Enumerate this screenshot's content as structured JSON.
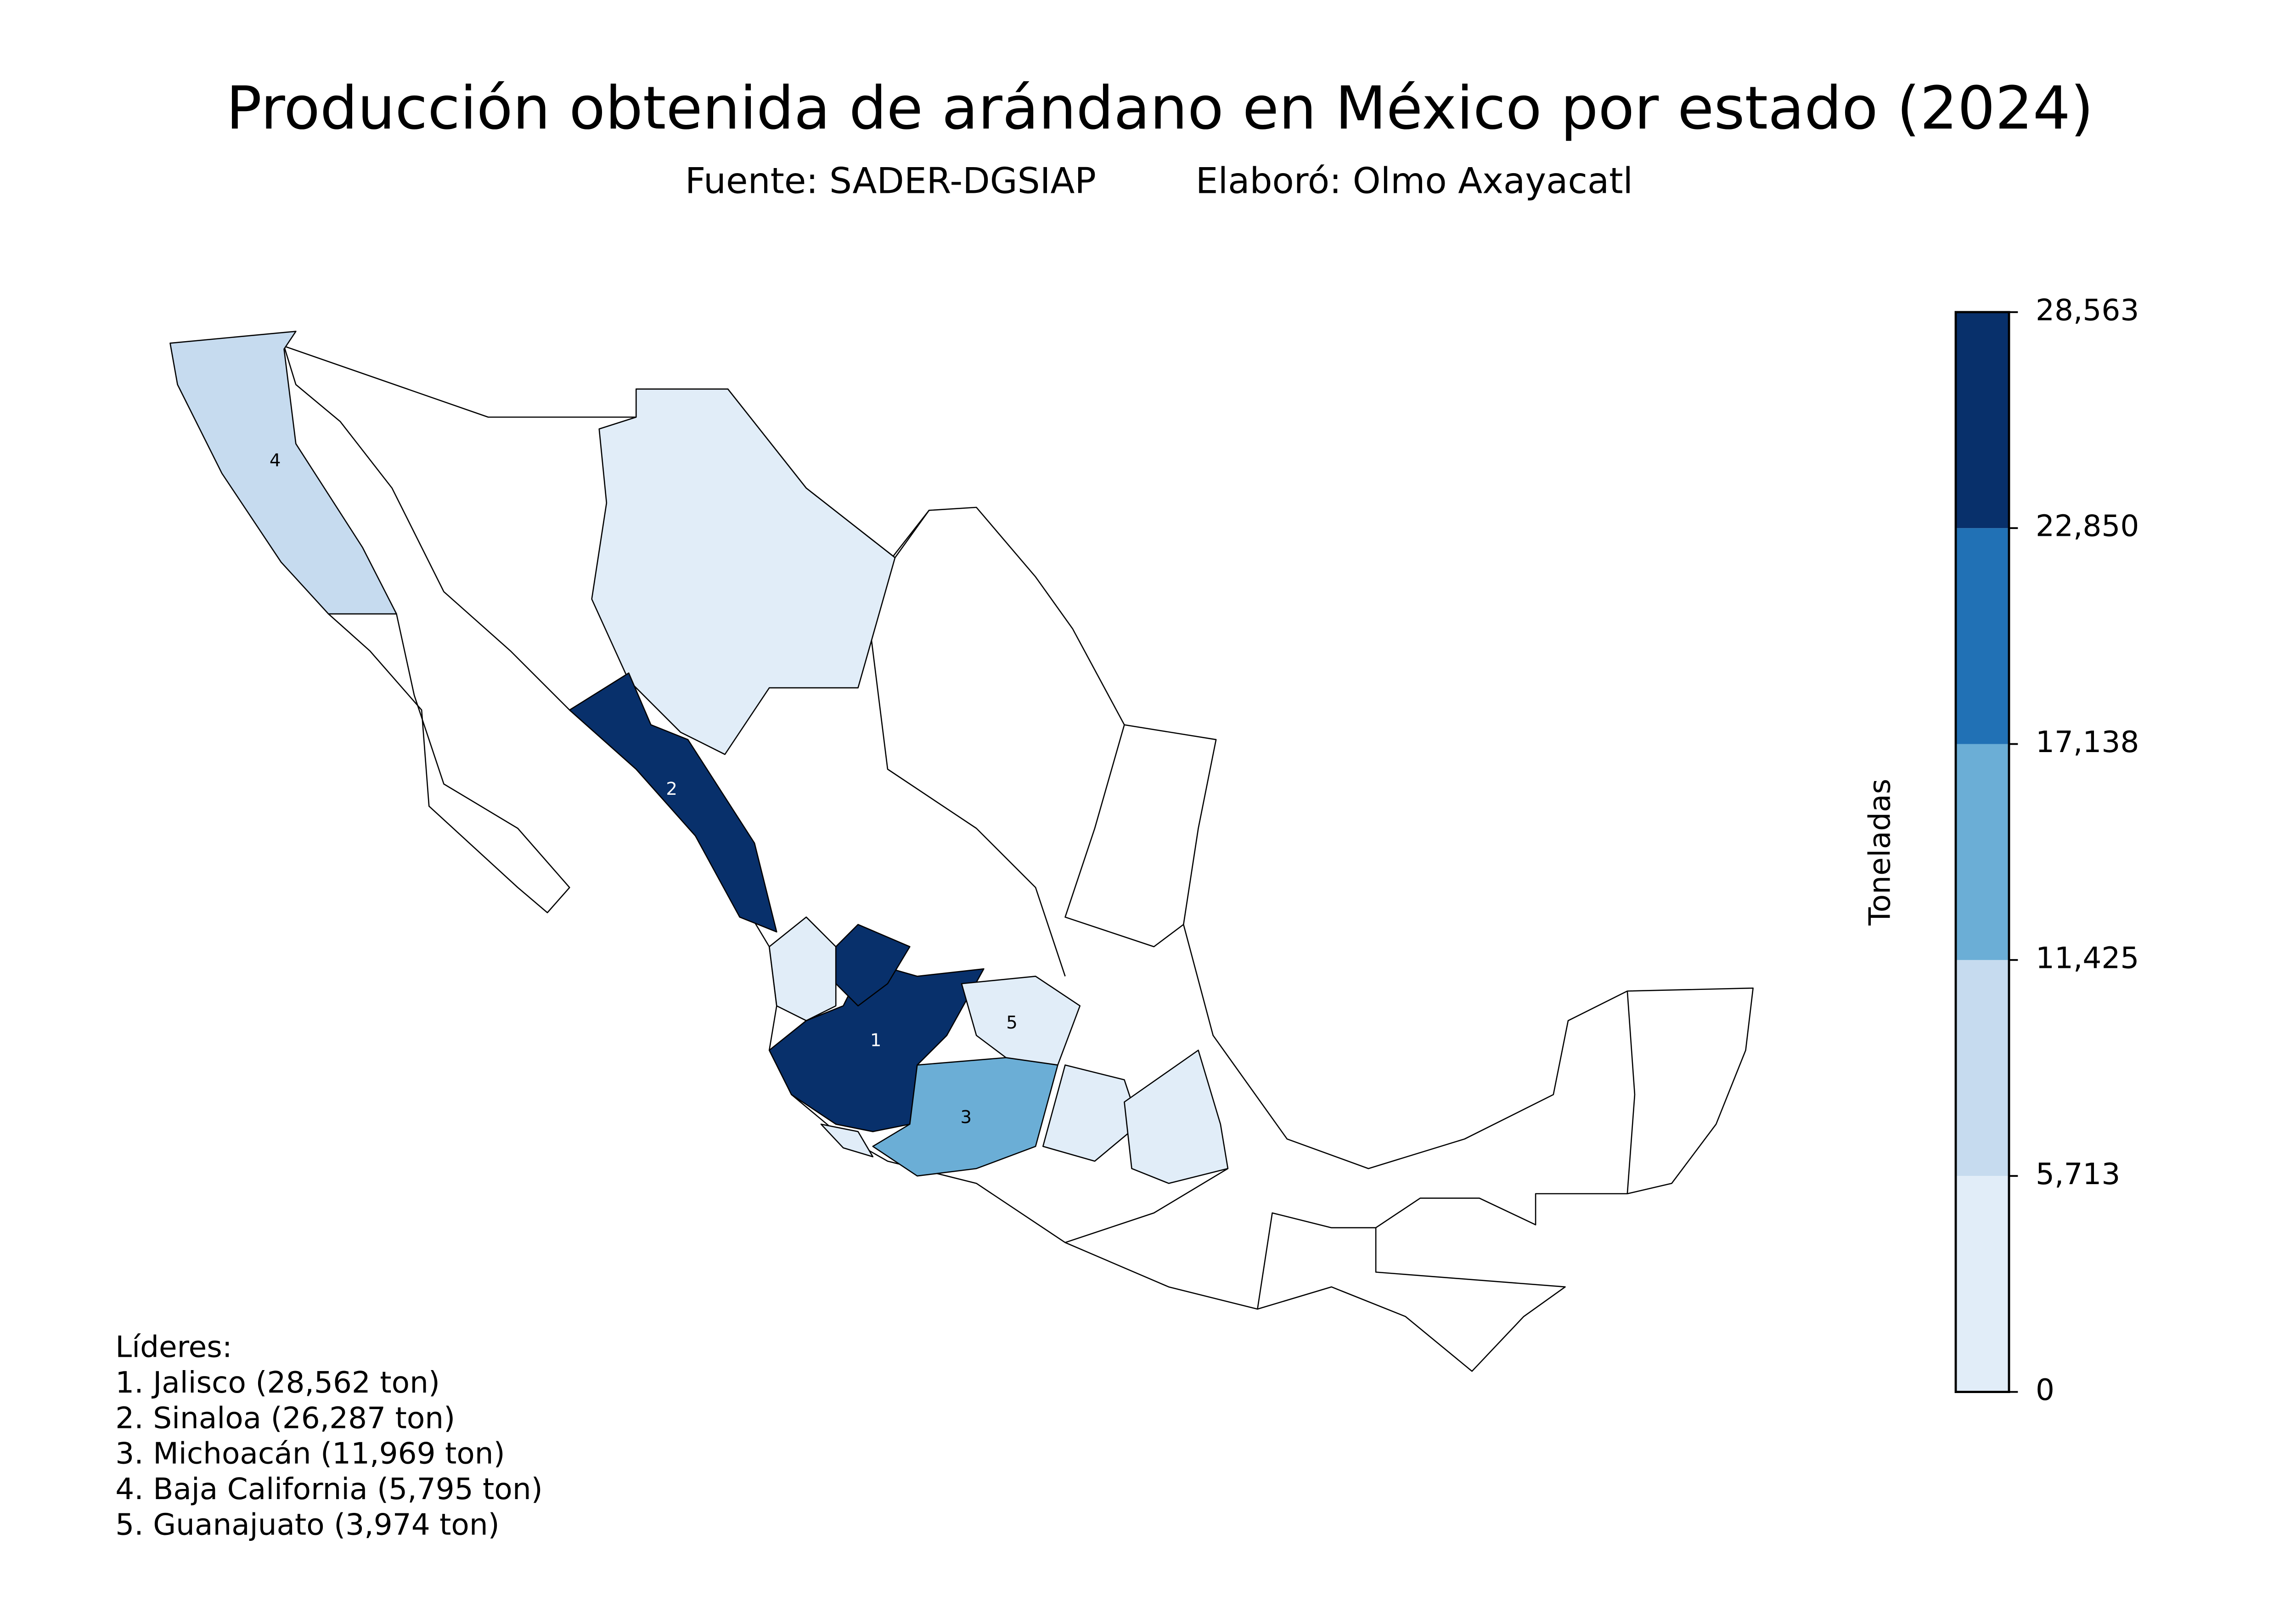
{
  "title": "Producción obtenida de arándano en México por estado (2024)",
  "subtitle": [
    "Fuente: SADER-DGSIAP",
    "Elaboró: Olmo Axayacatl"
  ],
  "colorbar": {
    "label": "Toneladas",
    "lim": [
      0,
      28563
    ],
    "ticks": [
      0,
      {
        "value": 5713,
        "label": "5,713"
      },
      {
        "value": 11425,
        "label": "11,425"
      },
      {
        "value": 17138,
        "label": "17,138"
      },
      {
        "value": 22850,
        "label": "22,850"
      },
      {
        "value": 28563,
        "label": "28,563"
      }
    ],
    "colors": [
      "#e1edf8",
      "#c6dbef",
      "#6baed6",
      "#2171b5",
      "#08306b"
    ]
  },
  "leaders": {
    "heading": "Líderes:",
    "items": [
      {
        "marker": 1,
        "text": "1. Jalisco (28,562 ton)",
        "value": 28562
      },
      {
        "marker": 2,
        "text": "2. Sinaloa (26,287 ton)",
        "value": 26287
      },
      {
        "marker": 3,
        "text": "3. Michoacán (11,969 ton)",
        "value": 11969
      },
      {
        "marker": 4,
        "text": "4. Baja California (5,795 ton)",
        "value": 5795
      },
      {
        "marker": 5,
        "text": "5. Guanajuato (3,974 ton)",
        "value": 3974
      }
    ]
  }
}
